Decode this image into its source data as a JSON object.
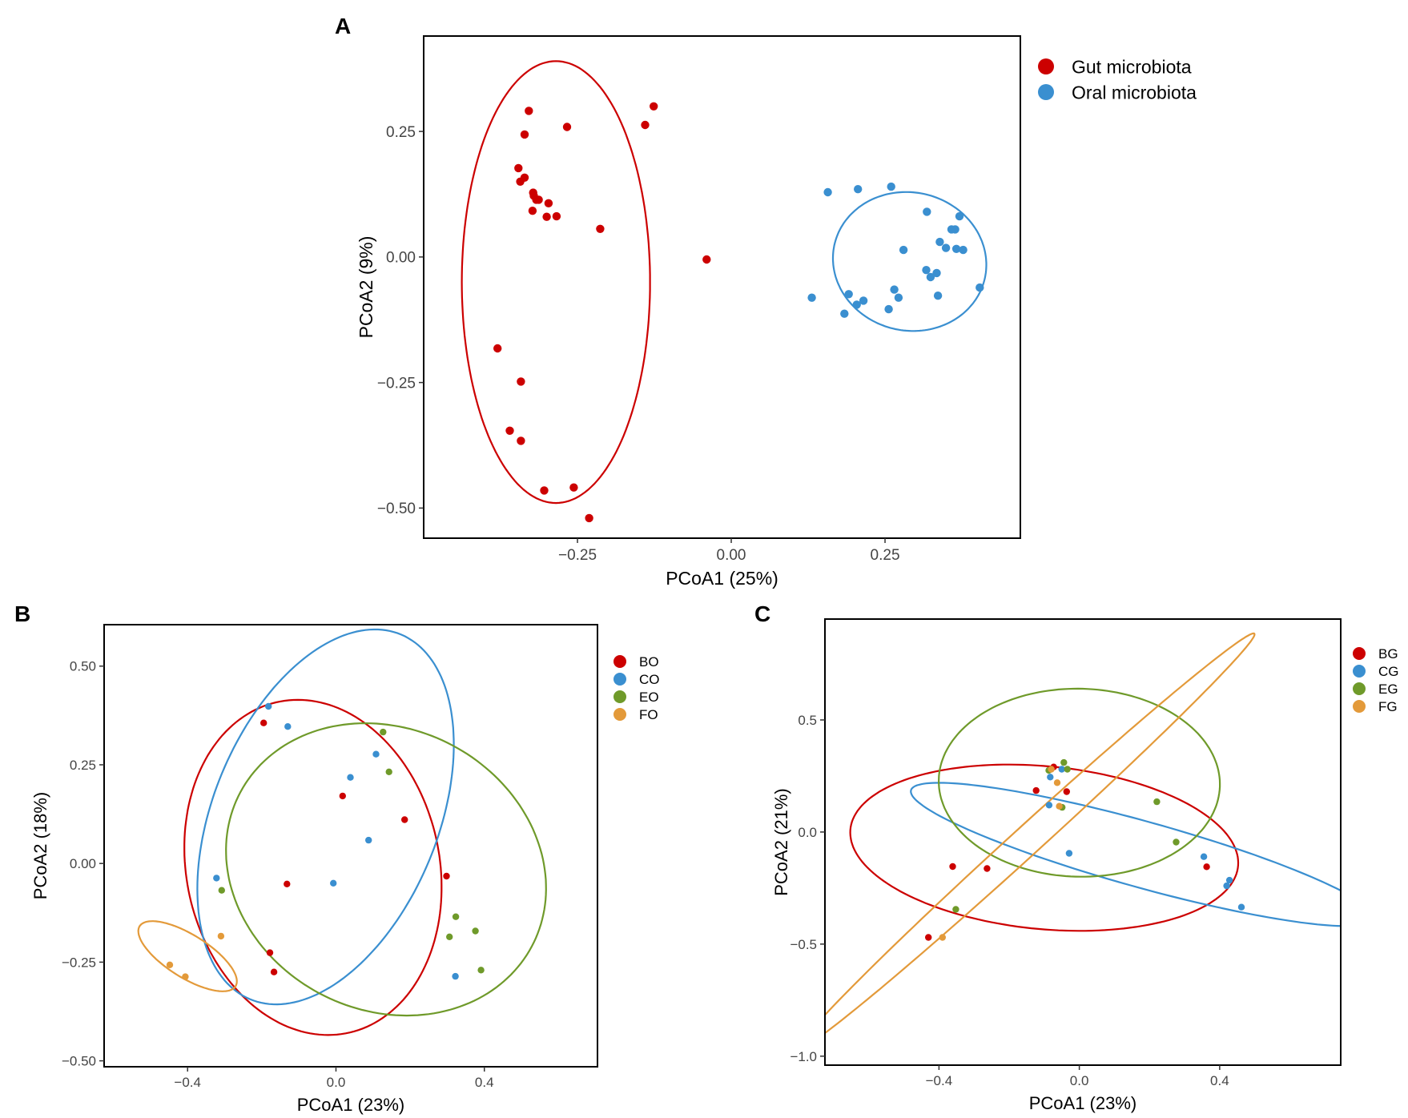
{
  "chart_data": [
    {
      "panel": "A",
      "type": "scatter",
      "xlabel": "PCoA1 (25%)",
      "ylabel": "PCoA2 (9%)",
      "xlim": [
        -0.5,
        0.47
      ],
      "ylim": [
        -0.56,
        0.44
      ],
      "xticks": [
        -0.25,
        0.0,
        0.25
      ],
      "yticks": [
        -0.5,
        -0.25,
        0.0,
        0.25
      ],
      "xtick_labels": [
        "−0.25",
        "0.00",
        "0.25"
      ],
      "ytick_labels": [
        "−0.50",
        "−0.25",
        "0.00",
        "0.25"
      ],
      "legend_position": "right",
      "series": [
        {
          "name": "Gut microbiota",
          "color": "#cc0000",
          "points": [
            [
              -0.329,
              0.291
            ],
            [
              -0.336,
              0.244
            ],
            [
              -0.267,
              0.259
            ],
            [
              -0.14,
              0.263
            ],
            [
              -0.126,
              0.3
            ],
            [
              -0.346,
              0.177
            ],
            [
              -0.343,
              0.15
            ],
            [
              -0.336,
              0.158
            ],
            [
              -0.322,
              0.128
            ],
            [
              -0.321,
              0.122
            ],
            [
              -0.317,
              0.114
            ],
            [
              -0.313,
              0.114
            ],
            [
              -0.297,
              0.107
            ],
            [
              -0.323,
              0.092
            ],
            [
              -0.3,
              0.08
            ],
            [
              -0.284,
              0.081
            ],
            [
              -0.213,
              0.056
            ],
            [
              -0.04,
              -0.005
            ],
            [
              -0.38,
              -0.182
            ],
            [
              -0.342,
              -0.248
            ],
            [
              -0.36,
              -0.346
            ],
            [
              -0.342,
              -0.366
            ],
            [
              -0.304,
              -0.465
            ],
            [
              -0.256,
              -0.459
            ],
            [
              -0.231,
              -0.52
            ]
          ],
          "ellipse": {
            "cx": -0.285,
            "cy": -0.05,
            "rx": 0.153,
            "ry": 0.44,
            "angle_deg": 0
          }
        },
        {
          "name": "Oral microbiota",
          "color": "#3a8fd0",
          "points": [
            [
              0.157,
              0.129
            ],
            [
              0.206,
              0.135
            ],
            [
              0.26,
              0.14
            ],
            [
              0.318,
              0.09
            ],
            [
              0.371,
              0.081
            ],
            [
              0.364,
              0.055
            ],
            [
              0.358,
              0.055
            ],
            [
              0.339,
              0.03
            ],
            [
              0.349,
              0.018
            ],
            [
              0.366,
              0.016
            ],
            [
              0.377,
              0.014
            ],
            [
              0.28,
              0.014
            ],
            [
              0.317,
              -0.026
            ],
            [
              0.334,
              -0.032
            ],
            [
              0.324,
              -0.04
            ],
            [
              0.265,
              -0.065
            ],
            [
              0.191,
              -0.074
            ],
            [
              0.404,
              -0.061
            ],
            [
              0.336,
              -0.077
            ],
            [
              0.272,
              -0.081
            ],
            [
              0.215,
              -0.087
            ],
            [
              0.204,
              -0.095
            ],
            [
              0.131,
              -0.081
            ],
            [
              0.256,
              -0.104
            ],
            [
              0.184,
              -0.113
            ]
          ],
          "ellipse": {
            "cx": 0.29,
            "cy": -0.009,
            "rx": 0.124,
            "ry": 0.139,
            "angle_deg": 12
          }
        }
      ]
    },
    {
      "panel": "B",
      "type": "scatter",
      "xlabel": "PCoA1 (23%)",
      "ylabel": "PCoA2 (18%)",
      "xlim": [
        -0.625,
        0.705
      ],
      "ylim": [
        -0.515,
        0.605
      ],
      "xticks": [
        -0.4,
        0.0,
        0.4
      ],
      "yticks": [
        -0.5,
        -0.25,
        0.0,
        0.25,
        0.5
      ],
      "xtick_labels": [
        "−0.4",
        "0.0",
        "0.4"
      ],
      "ytick_labels": [
        "−0.50",
        "−0.25",
        "0.00",
        "0.25",
        "0.50"
      ],
      "legend_position": "right",
      "series": [
        {
          "name": "BO",
          "color": "#cc0000",
          "points": [
            [
              -0.195,
              0.356
            ],
            [
              0.018,
              0.171
            ],
            [
              0.185,
              0.111
            ],
            [
              -0.132,
              -0.052
            ],
            [
              0.298,
              -0.032
            ],
            [
              -0.178,
              -0.226
            ],
            [
              -0.167,
              -0.275
            ]
          ],
          "ellipse": {
            "cx": -0.062,
            "cy": -0.01,
            "rx": 0.34,
            "ry": 0.43,
            "angle_deg": 15
          }
        },
        {
          "name": "CO",
          "color": "#3a8fd0",
          "points": [
            [
              -0.182,
              0.398
            ],
            [
              -0.13,
              0.347
            ],
            [
              0.108,
              0.277
            ],
            [
              0.039,
              0.218
            ],
            [
              0.088,
              0.059
            ],
            [
              -0.007,
              -0.05
            ],
            [
              -0.322,
              -0.037
            ],
            [
              0.322,
              -0.286
            ]
          ],
          "ellipse": {
            "cx": -0.028,
            "cy": 0.118,
            "rx": 0.3,
            "ry": 0.505,
            "angle_deg": -25
          }
        },
        {
          "name": "EO",
          "color": "#6f9a2a",
          "points": [
            [
              0.127,
              0.333
            ],
            [
              0.143,
              0.232
            ],
            [
              -0.308,
              -0.068
            ],
            [
              0.323,
              -0.135
            ],
            [
              0.376,
              -0.171
            ],
            [
              0.306,
              -0.186
            ],
            [
              0.391,
              -0.27
            ]
          ],
          "ellipse": {
            "cx": 0.135,
            "cy": -0.015,
            "rx": 0.44,
            "ry": 0.36,
            "angle_deg": -20
          }
        },
        {
          "name": "FO",
          "color": "#e39a3a",
          "points": [
            [
              -0.31,
              -0.184
            ],
            [
              -0.448,
              -0.257
            ],
            [
              -0.406,
              -0.287
            ]
          ],
          "ellipse": {
            "cx": -0.4,
            "cy": -0.235,
            "rx": 0.15,
            "ry": 0.055,
            "angle_deg": -30
          }
        }
      ]
    },
    {
      "panel": "C",
      "type": "scatter",
      "xlabel": "PCoA1 (23%)",
      "ylabel": "PCoA2 (21%)",
      "xlim": [
        -0.725,
        0.745
      ],
      "ylim": [
        -1.04,
        0.95
      ],
      "xticks": [
        -0.4,
        0.0,
        0.4
      ],
      "yticks": [
        -1.0,
        -0.5,
        0.0,
        0.5
      ],
      "xtick_labels": [
        "−0.4",
        "0.0",
        "0.4"
      ],
      "ytick_labels": [
        "−1.0",
        "−0.5",
        "0.0",
        "0.5"
      ],
      "legend_position": "right",
      "series": [
        {
          "name": "BG",
          "color": "#cc0000",
          "points": [
            [
              -0.073,
              0.29
            ],
            [
              -0.123,
              0.185
            ],
            [
              -0.036,
              0.18
            ],
            [
              -0.361,
              -0.154
            ],
            [
              -0.263,
              -0.163
            ],
            [
              0.363,
              -0.155
            ],
            [
              -0.43,
              -0.47
            ]
          ],
          "ellipse": {
            "cx": -0.1,
            "cy": -0.07,
            "rx": 0.56,
            "ry": 0.36,
            "angle_deg": -12
          }
        },
        {
          "name": "CG",
          "color": "#3a8fd0",
          "points": [
            [
              -0.05,
              0.28
            ],
            [
              -0.083,
              0.245
            ],
            [
              -0.086,
              0.12
            ],
            [
              -0.029,
              -0.095
            ],
            [
              0.355,
              -0.11
            ],
            [
              0.428,
              -0.215
            ],
            [
              0.42,
              -0.24
            ],
            [
              0.462,
              -0.335
            ]
          ],
          "ellipse": {
            "cx": 0.18,
            "cy": -0.1,
            "rx": 0.72,
            "ry": 0.14,
            "angle_deg": -24
          }
        },
        {
          "name": "EG",
          "color": "#6f9a2a",
          "points": [
            [
              -0.044,
              0.31
            ],
            [
              -0.034,
              0.28
            ],
            [
              -0.087,
              0.275
            ],
            [
              -0.049,
              0.11
            ],
            [
              0.221,
              0.135
            ],
            [
              0.276,
              -0.045
            ],
            [
              -0.352,
              -0.345
            ]
          ],
          "ellipse": {
            "cx": 0.0,
            "cy": 0.22,
            "rx": 0.4,
            "ry": 0.42,
            "angle_deg": 10
          }
        },
        {
          "name": "FG",
          "color": "#e39a3a",
          "points": [
            [
              -0.08,
              0.28
            ],
            [
              -0.063,
              0.22
            ],
            [
              -0.057,
              0.115
            ],
            [
              -0.39,
              -0.47
            ]
          ],
          "ellipse": {
            "cx": -0.15,
            "cy": -0.04,
            "rx": 1.13,
            "ry": 0.05,
            "angle_deg": 55
          }
        }
      ]
    }
  ],
  "panels": {
    "A": {
      "letter": "A"
    },
    "B": {
      "letter": "B"
    },
    "C": {
      "letter": "C"
    }
  }
}
